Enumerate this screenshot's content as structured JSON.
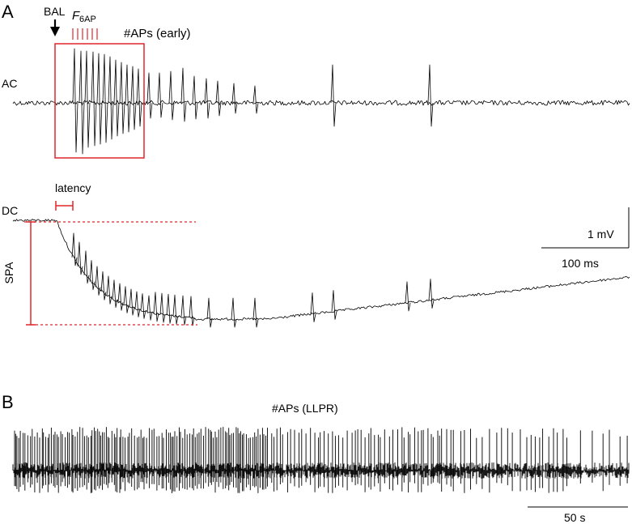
{
  "figure": {
    "panel_a_label": "A",
    "panel_b_label": "B",
    "trace_ac_label": "AC",
    "trace_dc_label": "DC",
    "bal_label": "BAL",
    "f6ap_label_main": "F",
    "f6ap_label_sub": "6AP",
    "aps_early_label": "#APs (early)",
    "latency_label": "latency",
    "spa_label": "SPA",
    "scale_voltage_label": "1 mV",
    "scale_time_label": "100 ms",
    "aps_llpr_label": "#APs (LLPR)",
    "scale_long_time_label": "50 s"
  },
  "colors": {
    "trace": "#000000",
    "annotation": "#e0262b"
  }
}
